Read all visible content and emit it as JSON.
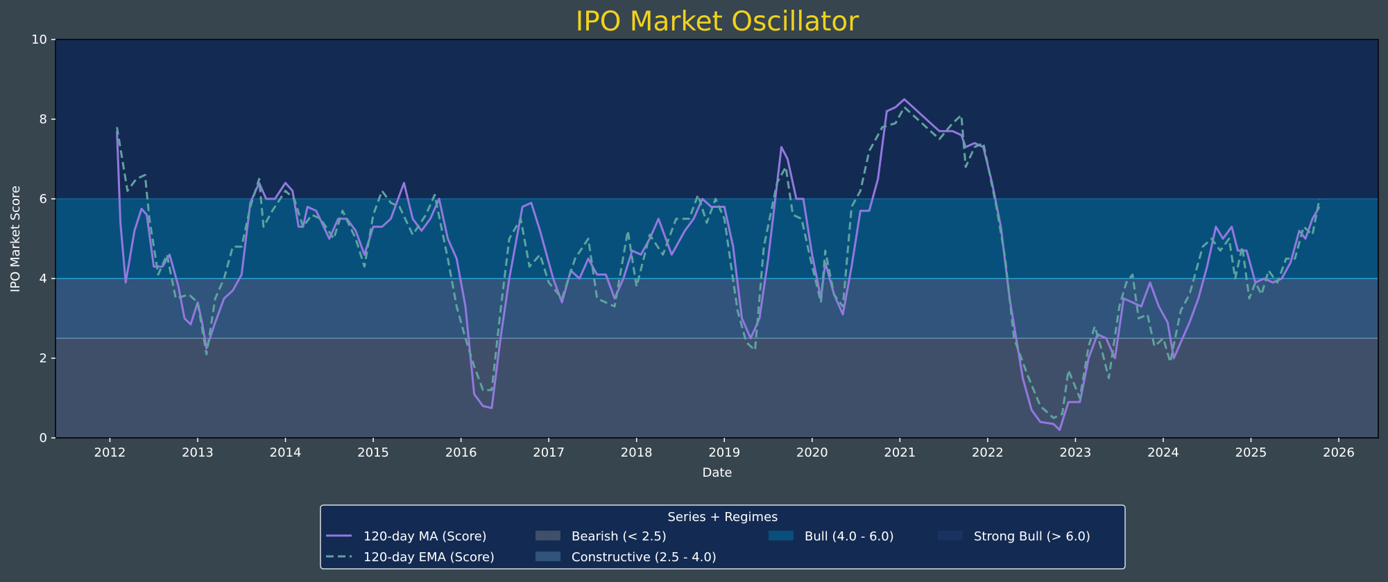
{
  "chart_data": {
    "type": "line",
    "title": "IPO Market Oscillator",
    "xlabel": "Date",
    "ylabel": "IPO Market Score",
    "xlim": [
      2011.38,
      2026.45
    ],
    "ylim": [
      0,
      10
    ],
    "x_ticks": [
      "2012",
      "2013",
      "2014",
      "2015",
      "2016",
      "2017",
      "2018",
      "2019",
      "2020",
      "2021",
      "2022",
      "2023",
      "2024",
      "2025",
      "2026"
    ],
    "y_ticks": [
      "0",
      "2",
      "4",
      "6",
      "8",
      "10"
    ],
    "grid": false,
    "colors": {
      "background": "#37454f",
      "title": "#f2d21b",
      "text": "#ffffff",
      "ma": "#9378e0",
      "ema": "#5fa3a0"
    },
    "regimes": [
      {
        "name": "Bearish (< 2.5)",
        "from": 0,
        "to": 2.5,
        "color": "#3f4f69",
        "edge": "#6d8cae"
      },
      {
        "name": "Constructive (2.5 - 4.0)",
        "from": 2.5,
        "to": 4.0,
        "color": "#30547b",
        "edge": "#2ea0d6"
      },
      {
        "name": "Bull (4.0 - 6.0)",
        "from": 4.0,
        "to": 6.0,
        "color": "#07507b",
        "edge": "#12689a"
      },
      {
        "name": "Strong Bull (> 6.0)",
        "from": 6.0,
        "to": 10,
        "color": "#132a52",
        "edge": null
      }
    ],
    "legend": {
      "title": "Series + Regimes",
      "placement": "bottom-center"
    },
    "series": [
      {
        "name": "120-day MA (Score)",
        "style": "solid",
        "points": [
          [
            2012.08,
            7.7
          ],
          [
            2012.12,
            5.4
          ],
          [
            2012.18,
            3.9
          ],
          [
            2012.28,
            5.2
          ],
          [
            2012.36,
            5.75
          ],
          [
            2012.42,
            5.6
          ],
          [
            2012.5,
            4.3
          ],
          [
            2012.6,
            4.3
          ],
          [
            2012.68,
            4.6
          ],
          [
            2012.78,
            3.8
          ],
          [
            2012.85,
            3.0
          ],
          [
            2012.92,
            2.85
          ],
          [
            2013.0,
            3.4
          ],
          [
            2013.05,
            2.9
          ],
          [
            2013.1,
            2.25
          ],
          [
            2013.2,
            2.9
          ],
          [
            2013.3,
            3.5
          ],
          [
            2013.4,
            3.7
          ],
          [
            2013.5,
            4.1
          ],
          [
            2013.6,
            5.9
          ],
          [
            2013.7,
            6.4
          ],
          [
            2013.78,
            6.0
          ],
          [
            2013.88,
            6.0
          ],
          [
            2014.0,
            6.4
          ],
          [
            2014.08,
            6.2
          ],
          [
            2014.15,
            5.3
          ],
          [
            2014.2,
            5.3
          ],
          [
            2014.25,
            5.8
          ],
          [
            2014.35,
            5.7
          ],
          [
            2014.5,
            5.0
          ],
          [
            2014.6,
            5.5
          ],
          [
            2014.7,
            5.5
          ],
          [
            2014.8,
            5.2
          ],
          [
            2014.9,
            4.6
          ],
          [
            2015.0,
            5.3
          ],
          [
            2015.1,
            5.3
          ],
          [
            2015.2,
            5.5
          ],
          [
            2015.35,
            6.4
          ],
          [
            2015.45,
            5.5
          ],
          [
            2015.55,
            5.2
          ],
          [
            2015.65,
            5.5
          ],
          [
            2015.75,
            6.0
          ],
          [
            2015.85,
            5.0
          ],
          [
            2015.95,
            4.5
          ],
          [
            2016.05,
            3.3
          ],
          [
            2016.15,
            1.1
          ],
          [
            2016.25,
            0.8
          ],
          [
            2016.35,
            0.75
          ],
          [
            2016.45,
            2.5
          ],
          [
            2016.55,
            4.0
          ],
          [
            2016.7,
            5.8
          ],
          [
            2016.8,
            5.9
          ],
          [
            2016.9,
            5.2
          ],
          [
            2017.05,
            4.0
          ],
          [
            2017.15,
            3.4
          ],
          [
            2017.25,
            4.2
          ],
          [
            2017.35,
            4.0
          ],
          [
            2017.45,
            4.5
          ],
          [
            2017.55,
            4.1
          ],
          [
            2017.65,
            4.1
          ],
          [
            2017.75,
            3.5
          ],
          [
            2017.85,
            4.0
          ],
          [
            2017.95,
            4.7
          ],
          [
            2018.05,
            4.6
          ],
          [
            2018.15,
            5.0
          ],
          [
            2018.25,
            5.5
          ],
          [
            2018.4,
            4.6
          ],
          [
            2018.55,
            5.2
          ],
          [
            2018.65,
            5.5
          ],
          [
            2018.75,
            6.0
          ],
          [
            2018.85,
            5.8
          ],
          [
            2019.0,
            5.8
          ],
          [
            2019.1,
            4.8
          ],
          [
            2019.2,
            3.0
          ],
          [
            2019.3,
            2.5
          ],
          [
            2019.4,
            3.0
          ],
          [
            2019.5,
            4.5
          ],
          [
            2019.65,
            7.3
          ],
          [
            2019.72,
            7.0
          ],
          [
            2019.82,
            6.0
          ],
          [
            2019.9,
            6.0
          ],
          [
            2020.0,
            4.6
          ],
          [
            2020.1,
            3.5
          ],
          [
            2020.15,
            4.4
          ],
          [
            2020.25,
            3.6
          ],
          [
            2020.35,
            3.1
          ],
          [
            2020.45,
            4.3
          ],
          [
            2020.55,
            5.7
          ],
          [
            2020.65,
            5.7
          ],
          [
            2020.75,
            6.5
          ],
          [
            2020.85,
            8.2
          ],
          [
            2020.95,
            8.3
          ],
          [
            2021.05,
            8.5
          ],
          [
            2021.15,
            8.3
          ],
          [
            2021.25,
            8.1
          ],
          [
            2021.35,
            7.9
          ],
          [
            2021.45,
            7.7
          ],
          [
            2021.6,
            7.7
          ],
          [
            2021.7,
            7.6
          ],
          [
            2021.75,
            7.3
          ],
          [
            2021.85,
            7.4
          ],
          [
            2021.95,
            7.3
          ],
          [
            2022.05,
            6.4
          ],
          [
            2022.15,
            5.3
          ],
          [
            2022.25,
            3.5
          ],
          [
            2022.4,
            1.5
          ],
          [
            2022.5,
            0.7
          ],
          [
            2022.6,
            0.4
          ],
          [
            2022.75,
            0.35
          ],
          [
            2022.82,
            0.2
          ],
          [
            2022.92,
            0.9
          ],
          [
            2023.05,
            0.9
          ],
          [
            2023.15,
            2.0
          ],
          [
            2023.25,
            2.6
          ],
          [
            2023.35,
            2.5
          ],
          [
            2023.45,
            2.0
          ],
          [
            2023.55,
            3.5
          ],
          [
            2023.65,
            3.4
          ],
          [
            2023.75,
            3.3
          ],
          [
            2023.85,
            3.9
          ],
          [
            2023.95,
            3.3
          ],
          [
            2024.05,
            2.9
          ],
          [
            2024.12,
            2.0
          ],
          [
            2024.2,
            2.4
          ],
          [
            2024.3,
            2.9
          ],
          [
            2024.4,
            3.5
          ],
          [
            2024.5,
            4.3
          ],
          [
            2024.6,
            5.3
          ],
          [
            2024.68,
            5.0
          ],
          [
            2024.78,
            5.3
          ],
          [
            2024.85,
            4.7
          ],
          [
            2024.95,
            4.7
          ],
          [
            2025.05,
            3.9
          ],
          [
            2025.15,
            4.0
          ],
          [
            2025.25,
            3.9
          ],
          [
            2025.35,
            4.0
          ],
          [
            2025.45,
            4.4
          ],
          [
            2025.55,
            5.2
          ],
          [
            2025.62,
            5.0
          ],
          [
            2025.7,
            5.5
          ],
          [
            2025.78,
            5.8
          ]
        ]
      },
      {
        "name": "120-day EMA (Score)",
        "style": "dashed",
        "points": [
          [
            2012.08,
            7.8
          ],
          [
            2012.2,
            6.2
          ],
          [
            2012.3,
            6.5
          ],
          [
            2012.4,
            6.6
          ],
          [
            2012.45,
            5.5
          ],
          [
            2012.55,
            4.1
          ],
          [
            2012.65,
            4.6
          ],
          [
            2012.75,
            3.5
          ],
          [
            2012.9,
            3.6
          ],
          [
            2013.0,
            3.4
          ],
          [
            2013.1,
            2.1
          ],
          [
            2013.2,
            3.5
          ],
          [
            2013.3,
            4.0
          ],
          [
            2013.4,
            4.8
          ],
          [
            2013.5,
            4.8
          ],
          [
            2013.6,
            5.8
          ],
          [
            2013.7,
            6.5
          ],
          [
            2013.75,
            5.3
          ],
          [
            2013.85,
            5.7
          ],
          [
            2014.0,
            6.2
          ],
          [
            2014.1,
            6.0
          ],
          [
            2014.2,
            5.3
          ],
          [
            2014.3,
            5.6
          ],
          [
            2014.4,
            5.5
          ],
          [
            2014.55,
            5.0
          ],
          [
            2014.65,
            5.7
          ],
          [
            2014.8,
            5.0
          ],
          [
            2014.9,
            4.3
          ],
          [
            2015.0,
            5.6
          ],
          [
            2015.1,
            6.2
          ],
          [
            2015.2,
            5.9
          ],
          [
            2015.3,
            5.8
          ],
          [
            2015.45,
            5.1
          ],
          [
            2015.6,
            5.6
          ],
          [
            2015.7,
            6.1
          ],
          [
            2015.85,
            4.5
          ],
          [
            2015.95,
            3.3
          ],
          [
            2016.05,
            2.5
          ],
          [
            2016.15,
            1.8
          ],
          [
            2016.25,
            1.2
          ],
          [
            2016.35,
            1.2
          ],
          [
            2016.45,
            3.2
          ],
          [
            2016.55,
            5.0
          ],
          [
            2016.68,
            5.5
          ],
          [
            2016.78,
            4.3
          ],
          [
            2016.9,
            4.6
          ],
          [
            2017.0,
            3.9
          ],
          [
            2017.15,
            3.5
          ],
          [
            2017.3,
            4.5
          ],
          [
            2017.45,
            5.0
          ],
          [
            2017.55,
            3.5
          ],
          [
            2017.65,
            3.4
          ],
          [
            2017.75,
            3.3
          ],
          [
            2017.9,
            5.2
          ],
          [
            2018.0,
            3.8
          ],
          [
            2018.15,
            5.1
          ],
          [
            2018.3,
            4.6
          ],
          [
            2018.45,
            5.5
          ],
          [
            2018.6,
            5.5
          ],
          [
            2018.7,
            6.1
          ],
          [
            2018.8,
            5.4
          ],
          [
            2018.9,
            6.0
          ],
          [
            2019.0,
            5.5
          ],
          [
            2019.15,
            3.2
          ],
          [
            2019.25,
            2.4
          ],
          [
            2019.35,
            2.2
          ],
          [
            2019.45,
            4.8
          ],
          [
            2019.6,
            6.4
          ],
          [
            2019.7,
            6.8
          ],
          [
            2019.78,
            5.6
          ],
          [
            2019.88,
            5.5
          ],
          [
            2019.98,
            4.5
          ],
          [
            2020.1,
            3.4
          ],
          [
            2020.15,
            4.7
          ],
          [
            2020.25,
            3.6
          ],
          [
            2020.35,
            3.3
          ],
          [
            2020.45,
            5.8
          ],
          [
            2020.55,
            6.2
          ],
          [
            2020.65,
            7.2
          ],
          [
            2020.8,
            7.8
          ],
          [
            2020.95,
            7.9
          ],
          [
            2021.05,
            8.3
          ],
          [
            2021.2,
            8.0
          ],
          [
            2021.3,
            7.8
          ],
          [
            2021.45,
            7.5
          ],
          [
            2021.6,
            7.9
          ],
          [
            2021.7,
            8.1
          ],
          [
            2021.75,
            6.8
          ],
          [
            2021.85,
            7.3
          ],
          [
            2021.95,
            7.4
          ],
          [
            2022.1,
            5.8
          ],
          [
            2022.2,
            4.5
          ],
          [
            2022.3,
            2.5
          ],
          [
            2022.45,
            1.6
          ],
          [
            2022.6,
            0.8
          ],
          [
            2022.75,
            0.5
          ],
          [
            2022.85,
            0.6
          ],
          [
            2022.92,
            1.7
          ],
          [
            2023.05,
            1.0
          ],
          [
            2023.15,
            2.3
          ],
          [
            2023.22,
            2.8
          ],
          [
            2023.3,
            2.2
          ],
          [
            2023.38,
            1.5
          ],
          [
            2023.5,
            3.3
          ],
          [
            2023.58,
            3.9
          ],
          [
            2023.65,
            4.1
          ],
          [
            2023.72,
            3.0
          ],
          [
            2023.82,
            3.1
          ],
          [
            2023.9,
            2.3
          ],
          [
            2024.0,
            2.5
          ],
          [
            2024.08,
            1.9
          ],
          [
            2024.2,
            3.2
          ],
          [
            2024.3,
            3.6
          ],
          [
            2024.45,
            4.8
          ],
          [
            2024.55,
            5.0
          ],
          [
            2024.65,
            4.7
          ],
          [
            2024.75,
            5.0
          ],
          [
            2024.82,
            4.0
          ],
          [
            2024.9,
            4.8
          ],
          [
            2024.98,
            3.5
          ],
          [
            2025.05,
            3.9
          ],
          [
            2025.12,
            3.6
          ],
          [
            2025.2,
            4.2
          ],
          [
            2025.3,
            3.9
          ],
          [
            2025.4,
            4.5
          ],
          [
            2025.5,
            4.5
          ],
          [
            2025.6,
            5.3
          ],
          [
            2025.7,
            5.1
          ],
          [
            2025.78,
            6.0
          ]
        ]
      }
    ]
  }
}
